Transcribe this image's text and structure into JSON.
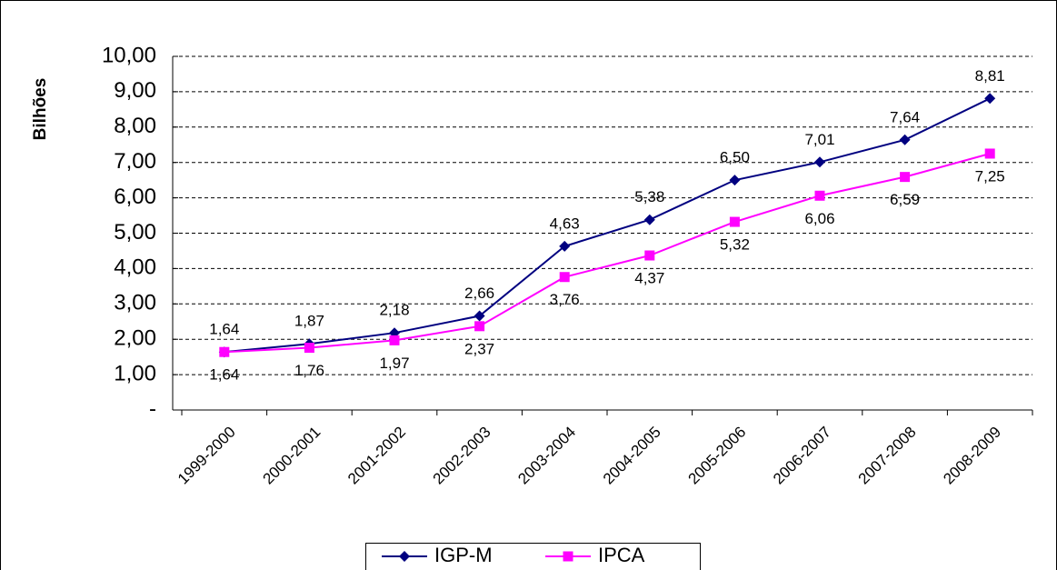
{
  "chart_data": {
    "type": "line",
    "y_label": "Bilhões",
    "categories": [
      "1999-2000",
      "2000-2001",
      "2001-2002",
      "2002-2003",
      "2003-2004",
      "2004-2005",
      "2005-2006",
      "2006-2007",
      "2007-2008",
      "2008-2009"
    ],
    "series": [
      {
        "name": "IGP-M",
        "color": "#000080",
        "marker": "diamond",
        "values": [
          1.64,
          1.87,
          2.18,
          2.66,
          4.63,
          5.38,
          6.5,
          7.01,
          7.64,
          8.81
        ],
        "value_labels": [
          "1,64",
          "1,87",
          "2,18",
          "2,66",
          "4,63",
          "5,38",
          "6,50",
          "7,01",
          "7,64",
          "8,81"
        ]
      },
      {
        "name": "IPCA",
        "color": "#FF00FF",
        "marker": "square",
        "values": [
          1.64,
          1.76,
          1.97,
          2.37,
          3.76,
          4.37,
          5.32,
          6.06,
          6.59,
          7.25
        ],
        "value_labels": [
          "1,64",
          "1,76",
          "1,97",
          "2,37",
          "3,76",
          "4,37",
          "5,32",
          "6,06",
          "6,59",
          "7,25"
        ]
      }
    ],
    "ylim": [
      0,
      10
    ],
    "yticks": [
      {
        "value": 0,
        "label": "-"
      },
      {
        "value": 1,
        "label": "1,00"
      },
      {
        "value": 2,
        "label": "2,00"
      },
      {
        "value": 3,
        "label": "3,00"
      },
      {
        "value": 4,
        "label": "4,00"
      },
      {
        "value": 5,
        "label": "5,00"
      },
      {
        "value": 6,
        "label": "6,00"
      },
      {
        "value": 7,
        "label": "7,00"
      },
      {
        "value": 8,
        "label": "8,00"
      },
      {
        "value": 9,
        "label": "9,00"
      },
      {
        "value": 10,
        "label": "10,00"
      }
    ],
    "grid": true,
    "legend": "bottom"
  }
}
